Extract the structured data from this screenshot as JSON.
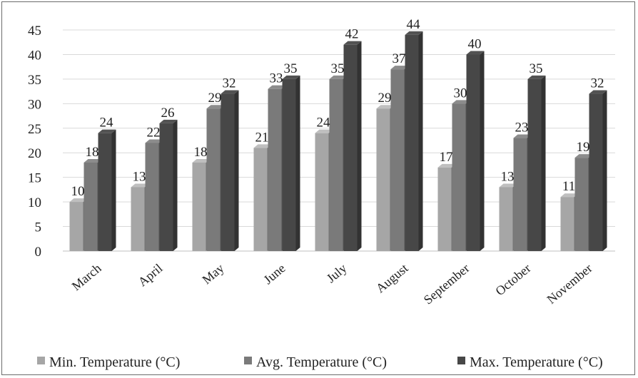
{
  "chart_data": {
    "type": "bar",
    "style": "3d-clustered-column",
    "title": "",
    "xlabel": "",
    "ylabel": "",
    "ylim": [
      0,
      45
    ],
    "y_ticks": [
      0,
      5,
      10,
      15,
      20,
      25,
      30,
      35,
      40,
      45
    ],
    "grid": true,
    "legend_position": "bottom",
    "categories": [
      "March",
      "April",
      "May",
      "June",
      "July",
      "August",
      "September",
      "October",
      "November"
    ],
    "series": [
      {
        "name": "Min. Temperature (°C)",
        "color": "#a6a6a6",
        "values": [
          10,
          13,
          18,
          21,
          24,
          29,
          17,
          13,
          11
        ]
      },
      {
        "name": "Avg. Temperature (°C)",
        "color": "#7a7a7a",
        "values": [
          18,
          22,
          29,
          33,
          35,
          37,
          30,
          23,
          19
        ]
      },
      {
        "name": "Max. Temperature (°C)",
        "color": "#474747",
        "values": [
          24,
          26,
          32,
          35,
          42,
          44,
          40,
          35,
          32
        ]
      }
    ]
  }
}
